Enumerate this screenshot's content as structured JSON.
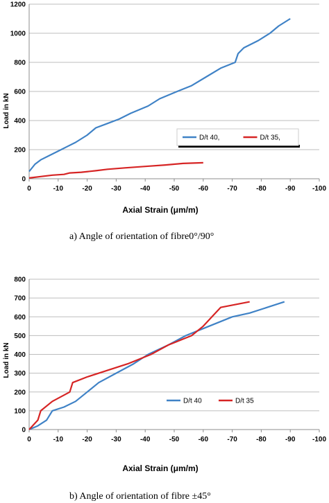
{
  "chart_data": [
    {
      "type": "line",
      "caption": "a)   Angle of orientation of fibre0°/90°",
      "xlabel": "Axial Strain (μm/m)",
      "ylabel": "Load in kN",
      "xlim": [
        0,
        -100
      ],
      "ylim": [
        0,
        1200
      ],
      "xticks": [
        "0",
        "-10",
        "-20",
        "-30",
        "-40",
        "-50",
        "-60",
        "-70",
        "-80",
        "-90",
        "-100"
      ],
      "yticks": [
        "0",
        "200",
        "400",
        "600",
        "800",
        "1000",
        "1200"
      ],
      "grid": true,
      "legend_placement": "center-right",
      "series": [
        {
          "name": "D/t 40,",
          "color": "#3f82c6",
          "x": [
            0,
            -2,
            -4,
            -7,
            -10,
            -13,
            -16,
            -20,
            -23,
            -27,
            -31,
            -35,
            -41,
            -45,
            -51,
            -56,
            -61,
            -66,
            -71,
            -72,
            -74,
            -79,
            -83,
            -86,
            -90
          ],
          "y": [
            50,
            100,
            130,
            160,
            190,
            220,
            250,
            300,
            350,
            380,
            410,
            450,
            500,
            550,
            600,
            640,
            700,
            760,
            800,
            860,
            900,
            950,
            1000,
            1050,
            1100
          ]
        },
        {
          "name": "D/t 35,",
          "color": "#d62424",
          "x": [
            0,
            -4,
            -8,
            -12,
            -14,
            -18,
            -23,
            -27,
            -33,
            -40,
            -47,
            -53,
            -60
          ],
          "y": [
            5,
            15,
            25,
            30,
            40,
            45,
            55,
            65,
            75,
            85,
            95,
            105,
            110
          ]
        }
      ]
    },
    {
      "type": "line",
      "caption": "b)   Angle of orientation of fibre ±45°",
      "xlabel": "Axial Strain (μm/m)",
      "ylabel": "Load in kN",
      "xlim": [
        0,
        -100
      ],
      "ylim": [
        0,
        800
      ],
      "xticks": [
        "0",
        "-10",
        "-20",
        "-30",
        "-40",
        "-50",
        "-60",
        "-70",
        "-80",
        "-90",
        "-100"
      ],
      "yticks": [
        "0",
        "100",
        "200",
        "300",
        "400",
        "500",
        "600",
        "700",
        "800"
      ],
      "grid": true,
      "legend_placement": "center-right",
      "series": [
        {
          "name": "D/t 40",
          "color": "#3f82c6",
          "x": [
            0,
            -3,
            -6,
            -8,
            -12,
            -16,
            -20,
            -24,
            -30,
            -36,
            -41,
            -48,
            -54,
            -62,
            -70,
            -76,
            -82,
            -88
          ],
          "y": [
            0,
            20,
            50,
            100,
            120,
            150,
            200,
            250,
            300,
            350,
            400,
            450,
            500,
            550,
            600,
            620,
            650,
            680
          ]
        },
        {
          "name": "D/t 35",
          "color": "#d62424",
          "x": [
            0,
            -3,
            -4,
            -8,
            -14,
            -15,
            -20,
            -28,
            -34,
            -42,
            -48,
            -56,
            -60,
            -63,
            -66,
            -76
          ],
          "y": [
            0,
            50,
            100,
            150,
            200,
            250,
            280,
            320,
            350,
            400,
            450,
            500,
            550,
            600,
            650,
            680
          ]
        }
      ]
    }
  ]
}
